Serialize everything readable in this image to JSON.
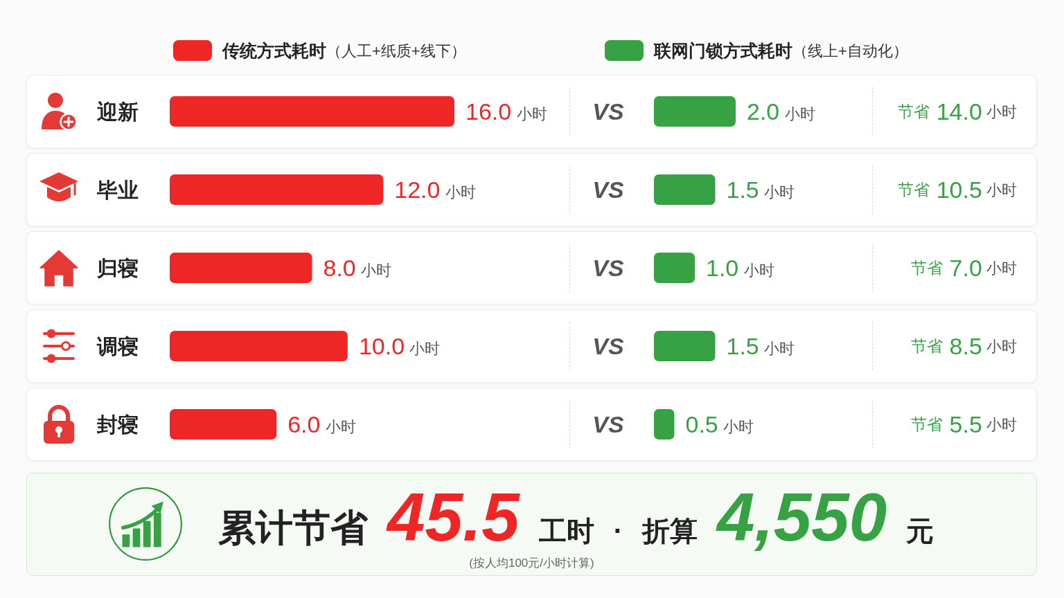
{
  "chart_data": [
    {
      "type": "bar",
      "orientation": "horizontal",
      "categories": [
        "迎新",
        "毕业",
        "归寝",
        "调寝",
        "封寝"
      ],
      "series": [
        {
          "name": "传统方式耗时（人工+纸质+线下）",
          "color": "#ee2626",
          "values": [
            16.0,
            12.0,
            8.0,
            10.0,
            6.0
          ],
          "value_labels": [
            "16.0 小时",
            "12.0 小时",
            "8.0 小时",
            "10.0 小时",
            "6.0 小时"
          ]
        }
      ],
      "legend": "top",
      "tick_labels": "y"
    },
    {
      "type": "bar",
      "orientation": "horizontal",
      "categories": [
        "迎新",
        "毕业",
        "归寝",
        "调寝",
        "封寝"
      ],
      "series": [
        {
          "name": "联网门锁方式耗时（线上+自动化）",
          "color": "#37a243",
          "values": [
            2.0,
            1.5,
            1.0,
            1.5,
            0.5
          ],
          "value_labels": [
            "2.0 小时",
            "1.5 小时",
            "1.0 小时",
            "1.5 小时",
            "0.5 小时"
          ]
        }
      ],
      "legend": "top",
      "tick_labels": false,
      "annotations": [
        "VS",
        "VS",
        "VS",
        "VS",
        "VS",
        "节省 14.0 小时",
        "节省 10.5 小时",
        "节省 7.0 小时",
        "节省 8.5 小时",
        "节省 5.5 小时"
      ]
    },
    {
      "type": "other",
      "annotations": [
        "累计节省",
        "45.5",
        "工时",
        "·",
        "折算",
        "4,550",
        "元",
        "(按人均100元/小时计算)"
      ]
    }
  ]
}
